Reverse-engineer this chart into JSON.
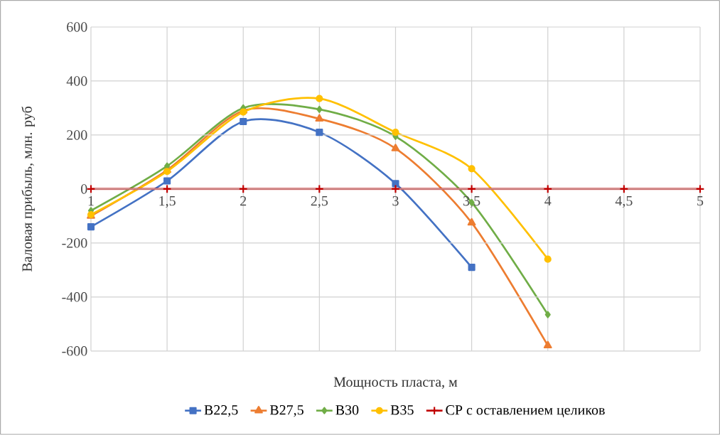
{
  "chart_data": {
    "type": "line",
    "xlabel": "Мощность пласта, м",
    "ylabel": "Валовая прибыль, млн. руб",
    "xlim": [
      1,
      5
    ],
    "xticks": [
      1,
      {
        "value": 1.5,
        "label": "1,5"
      },
      2,
      {
        "value": 2.5,
        "label": "2,5"
      },
      3,
      {
        "value": 3.5,
        "label": "3,5"
      },
      4,
      {
        "value": 4.5,
        "label": "4,5"
      },
      5
    ],
    "ylim": [
      -600,
      600
    ],
    "yticks": [
      -600,
      -400,
      -200,
      0,
      200,
      400,
      600
    ],
    "grid": true,
    "legend": "bottom",
    "series": [
      {
        "name": "B22,5",
        "color": "#4472c4",
        "marker": "square",
        "x": [
          1,
          1.5,
          2,
          2.5,
          3,
          3.5
        ],
        "values": [
          -140,
          30,
          250,
          210,
          20,
          -290
        ]
      },
      {
        "name": "B27,5",
        "color": "#ed7d31",
        "marker": "triangle",
        "x": [
          1,
          1.5,
          2,
          2.5,
          3,
          3.5,
          4
        ],
        "values": [
          -100,
          70,
          290,
          260,
          150,
          -125,
          -580
        ]
      },
      {
        "name": "B30",
        "color": "#70ad47",
        "marker": "diamond",
        "x": [
          1,
          1.5,
          2,
          2.5,
          3,
          3.5,
          4
        ],
        "values": [
          -80,
          85,
          300,
          295,
          195,
          -50,
          -465
        ]
      },
      {
        "name": "B35",
        "color": "#ffc000",
        "marker": "circle",
        "x": [
          1,
          1.5,
          2,
          2.5,
          3,
          3.5,
          4
        ],
        "values": [
          -95,
          65,
          285,
          335,
          210,
          75,
          -260
        ]
      },
      {
        "name": "СР с оставлением целиков",
        "color": "#c00000",
        "marker": "cross",
        "x": [
          1,
          1.5,
          2,
          2.5,
          3,
          3.5,
          4,
          4.5,
          5
        ],
        "values": [
          0,
          0,
          0,
          0,
          0,
          0,
          0,
          0,
          0
        ]
      }
    ]
  }
}
